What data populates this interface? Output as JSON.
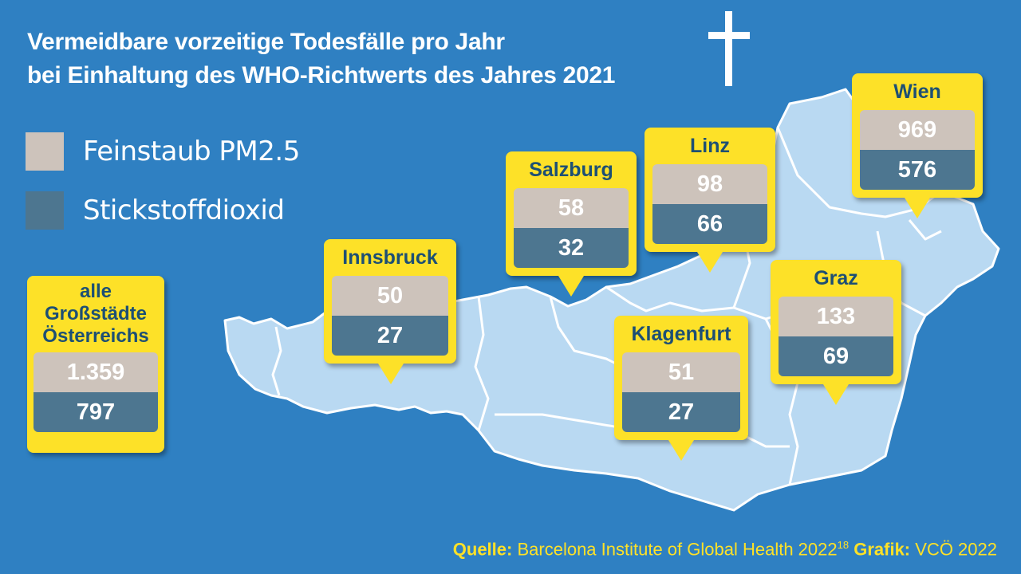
{
  "title": {
    "line1": "Vermeidbare vorzeitige Todesfälle pro Jahr",
    "line2": "bei Einhaltung des WHO-Richtwerts des Jahres 2021"
  },
  "legend": [
    {
      "label": "Feinstaub PM2.5",
      "color": "#cdc3bb"
    },
    {
      "label": "Stickstoffdioxid",
      "color": "#4d7690"
    }
  ],
  "colors": {
    "background": "#2f80c2",
    "map_fill": "#b9d9f2",
    "callout": "#fde128",
    "city_text": "#1d4f74"
  },
  "total": {
    "line1": "alle",
    "line2": "Großstädte",
    "line3": "Österreichs",
    "pm25": "1.359",
    "no2": "797"
  },
  "cities": [
    {
      "name": "Innsbruck",
      "pm25": "50",
      "no2": "27"
    },
    {
      "name": "Salzburg",
      "pm25": "58",
      "no2": "32"
    },
    {
      "name": "Linz",
      "pm25": "98",
      "no2": "66"
    },
    {
      "name": "Wien",
      "pm25": "969",
      "no2": "576"
    },
    {
      "name": "Graz",
      "pm25": "133",
      "no2": "69"
    },
    {
      "name": "Klagenfurt",
      "pm25": "51",
      "no2": "27"
    }
  ],
  "source": {
    "quelle_label": "Quelle:",
    "quelle_text": "Barcelona Institute of Global Health 2022",
    "footnote": "18",
    "grafik_label": "Grafik:",
    "grafik_text": "VCÖ 2022"
  },
  "icon": "cross-icon"
}
